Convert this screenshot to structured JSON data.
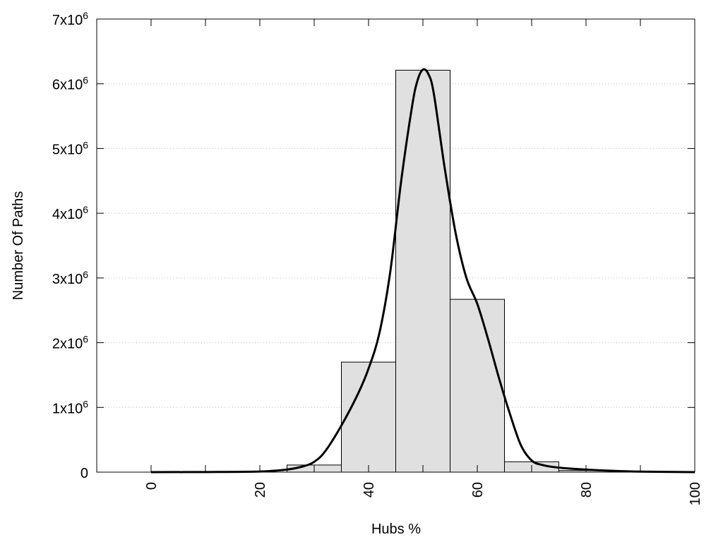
{
  "chart_data": {
    "type": "bar",
    "title": "",
    "xlabel": "Hubs %",
    "ylabel": "Number Of Paths",
    "xlim": [
      -10,
      100
    ],
    "ylim": [
      0,
      7000000
    ],
    "grid": true,
    "bar_color": "#e0e0e0",
    "line_color": "#000000",
    "x_ticks": [
      {
        "value": 0,
        "label": "0"
      },
      {
        "value": 20,
        "label": "20"
      },
      {
        "value": 40,
        "label": "40"
      },
      {
        "value": 60,
        "label": "60"
      },
      {
        "value": 80,
        "label": "80"
      },
      {
        "value": 100,
        "label": "100"
      }
    ],
    "x_minor_ticks": [
      10,
      30,
      50,
      70,
      90
    ],
    "y_ticks": [
      {
        "value": 0,
        "base": "0",
        "exp": ""
      },
      {
        "value": 1000000,
        "base": "1x10",
        "exp": "6"
      },
      {
        "value": 2000000,
        "base": "2x10",
        "exp": "6"
      },
      {
        "value": 3000000,
        "base": "3x10",
        "exp": "6"
      },
      {
        "value": 4000000,
        "base": "4x10",
        "exp": "6"
      },
      {
        "value": 5000000,
        "base": "5x10",
        "exp": "6"
      },
      {
        "value": 6000000,
        "base": "6x10",
        "exp": "6"
      },
      {
        "value": 7000000,
        "base": "7x10",
        "exp": "6"
      }
    ],
    "bins": [
      {
        "x0": 25,
        "x1": 35,
        "value": 110000
      },
      {
        "x0": 35,
        "x1": 45,
        "value": 1700000
      },
      {
        "x0": 45,
        "x1": 55,
        "value": 6210000
      },
      {
        "x0": 55,
        "x1": 65,
        "value": 2670000
      },
      {
        "x0": 65,
        "x1": 75,
        "value": 160000
      },
      {
        "x0": 75,
        "x1": 85,
        "value": 25000
      }
    ],
    "fit_curve": {
      "x": [
        0,
        10,
        20,
        25,
        28,
        30,
        32,
        35,
        38,
        40,
        42,
        44,
        46,
        48,
        49,
        50,
        51,
        52,
        54,
        56,
        58,
        60,
        62,
        64,
        66,
        68,
        70,
        72,
        75,
        80,
        85,
        90,
        100
      ],
      "y": [
        0,
        2000,
        10000,
        40000,
        90000,
        160000,
        320000,
        720000,
        1200000,
        1600000,
        2150000,
        3100000,
        4500000,
        5650000,
        6050000,
        6220000,
        6150000,
        5850000,
        4700000,
        3700000,
        3000000,
        2600000,
        2050000,
        1450000,
        900000,
        420000,
        180000,
        110000,
        70000,
        40000,
        20000,
        8000,
        0
      ]
    }
  }
}
